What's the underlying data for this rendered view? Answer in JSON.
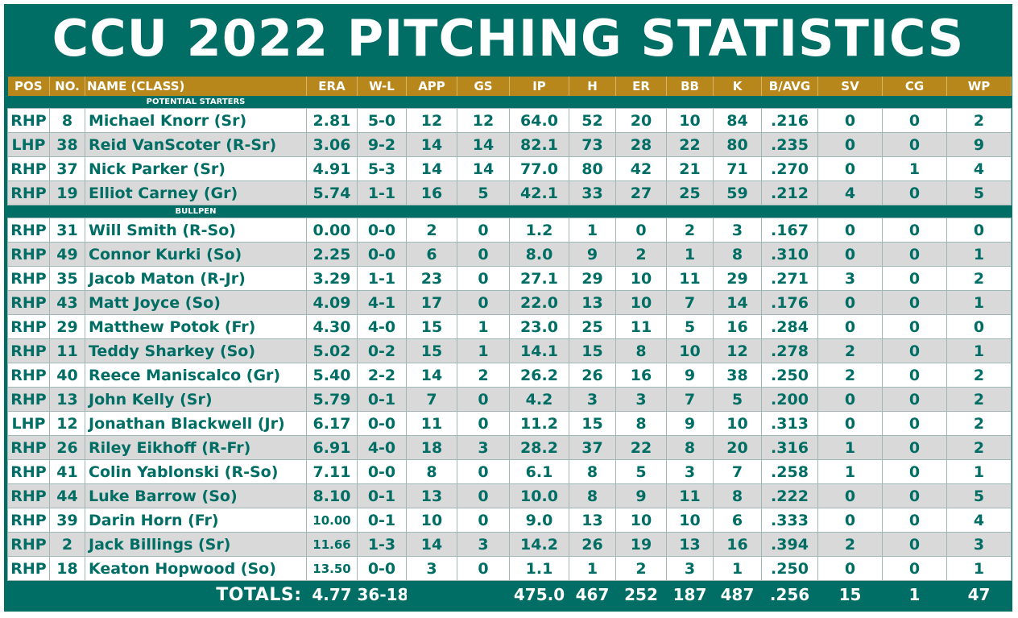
{
  "title": "CCU 2022 PITCHING STATISTICS",
  "colors": {
    "teal": "#006e64",
    "gold": "#b8871c",
    "alt_row": "#d9d9d9"
  },
  "columns": [
    "POS",
    "NO.",
    "NAME (CLASS)",
    "ERA",
    "W-L",
    "APP",
    "GS",
    "IP",
    "H",
    "ER",
    "BB",
    "K",
    "B/AVG",
    "SV",
    "CG",
    "WP"
  ],
  "sections": [
    {
      "label": "POTENTIAL STARTERS",
      "rows": [
        [
          "RHP",
          "8",
          "Michael Knorr (Sr)",
          "2.81",
          "5-0",
          "12",
          "12",
          "64.0",
          "52",
          "20",
          "10",
          "84",
          ".216",
          "0",
          "0",
          "2"
        ],
        [
          "LHP",
          "38",
          "Reid VanScoter (R-Sr)",
          "3.06",
          "9-2",
          "14",
          "14",
          "82.1",
          "73",
          "28",
          "22",
          "80",
          ".235",
          "0",
          "0",
          "9"
        ],
        [
          "RHP",
          "37",
          "Nick Parker (Sr)",
          "4.91",
          "5-3",
          "14",
          "14",
          "77.0",
          "80",
          "42",
          "21",
          "71",
          ".270",
          "0",
          "1",
          "4"
        ],
        [
          "RHP",
          "19",
          "Elliot Carney (Gr)",
          "5.74",
          "1-1",
          "16",
          "5",
          "42.1",
          "33",
          "27",
          "25",
          "59",
          ".212",
          "4",
          "0",
          "5"
        ]
      ]
    },
    {
      "label": "BULLPEN",
      "rows": [
        [
          "RHP",
          "31",
          "Will Smith (R-So)",
          "0.00",
          "0-0",
          "2",
          "0",
          "1.2",
          "1",
          "0",
          "2",
          "3",
          ".167",
          "0",
          "0",
          "0"
        ],
        [
          "RHP",
          "49",
          "Connor Kurki (So)",
          "2.25",
          "0-0",
          "6",
          "0",
          "8.0",
          "9",
          "2",
          "1",
          "8",
          ".310",
          "0",
          "0",
          "1"
        ],
        [
          "RHP",
          "35",
          "Jacob Maton (R-Jr)",
          "3.29",
          "1-1",
          "23",
          "0",
          "27.1",
          "29",
          "10",
          "11",
          "29",
          ".271",
          "3",
          "0",
          "2"
        ],
        [
          "RHP",
          "43",
          "Matt Joyce (So)",
          "4.09",
          "4-1",
          "17",
          "0",
          "22.0",
          "13",
          "10",
          "7",
          "14",
          ".176",
          "0",
          "0",
          "1"
        ],
        [
          "RHP",
          "29",
          "Matthew Potok (Fr)",
          "4.30",
          "4-0",
          "15",
          "1",
          "23.0",
          "25",
          "11",
          "5",
          "16",
          ".284",
          "0",
          "0",
          "0"
        ],
        [
          "RHP",
          "11",
          "Teddy Sharkey (So)",
          "5.02",
          "0-2",
          "15",
          "1",
          "14.1",
          "15",
          "8",
          "10",
          "12",
          ".278",
          "2",
          "0",
          "1"
        ],
        [
          "RHP",
          "40",
          "Reece Maniscalco (Gr)",
          "5.40",
          "2-2",
          "14",
          "2",
          "26.2",
          "26",
          "16",
          "9",
          "38",
          ".250",
          "2",
          "0",
          "2"
        ],
        [
          "RHP",
          "13",
          "John Kelly (Sr)",
          "5.79",
          "0-1",
          "7",
          "0",
          "4.2",
          "3",
          "3",
          "7",
          "5",
          ".200",
          "0",
          "0",
          "2"
        ],
        [
          "LHP",
          "12",
          "Jonathan Blackwell (Jr)",
          "6.17",
          "0-0",
          "11",
          "0",
          "11.2",
          "15",
          "8",
          "9",
          "10",
          ".313",
          "0",
          "0",
          "2"
        ],
        [
          "RHP",
          "26",
          "Riley Eikhoff (R-Fr)",
          "6.91",
          "4-0",
          "18",
          "3",
          "28.2",
          "37",
          "22",
          "8",
          "20",
          ".316",
          "1",
          "0",
          "2"
        ],
        [
          "RHP",
          "41",
          "Colin Yablonski (R-So)",
          "7.11",
          "0-0",
          "8",
          "0",
          "6.1",
          "8",
          "5",
          "3",
          "7",
          ".258",
          "1",
          "0",
          "1"
        ],
        [
          "RHP",
          "44",
          "Luke Barrow (So)",
          "8.10",
          "0-1",
          "13",
          "0",
          "10.0",
          "8",
          "9",
          "11",
          "8",
          ".222",
          "0",
          "0",
          "5"
        ],
        [
          "RHP",
          "39",
          "Darin Horn (Fr)",
          "10.00",
          "0-1",
          "10",
          "0",
          "9.0",
          "13",
          "10",
          "10",
          "6",
          ".333",
          "0",
          "0",
          "4"
        ],
        [
          "RHP",
          "2",
          "Jack Billings (Sr)",
          "11.66",
          "1-3",
          "14",
          "3",
          "14.2",
          "26",
          "19",
          "13",
          "16",
          ".394",
          "2",
          "0",
          "3"
        ],
        [
          "RHP",
          "18",
          "Keaton Hopwood (So)",
          "13.50",
          "0-0",
          "3",
          "0",
          "1.1",
          "1",
          "2",
          "3",
          "1",
          ".250",
          "0",
          "0",
          "1"
        ]
      ]
    }
  ],
  "totals": {
    "label": "TOTALS:",
    "era": "4.77",
    "wl": "36-18",
    "app": "",
    "gs": "",
    "ip": "475.0",
    "h": "467",
    "er": "252",
    "bb": "187",
    "k": "487",
    "bavg": ".256",
    "sv": "15",
    "cg": "1",
    "wp": "47"
  }
}
